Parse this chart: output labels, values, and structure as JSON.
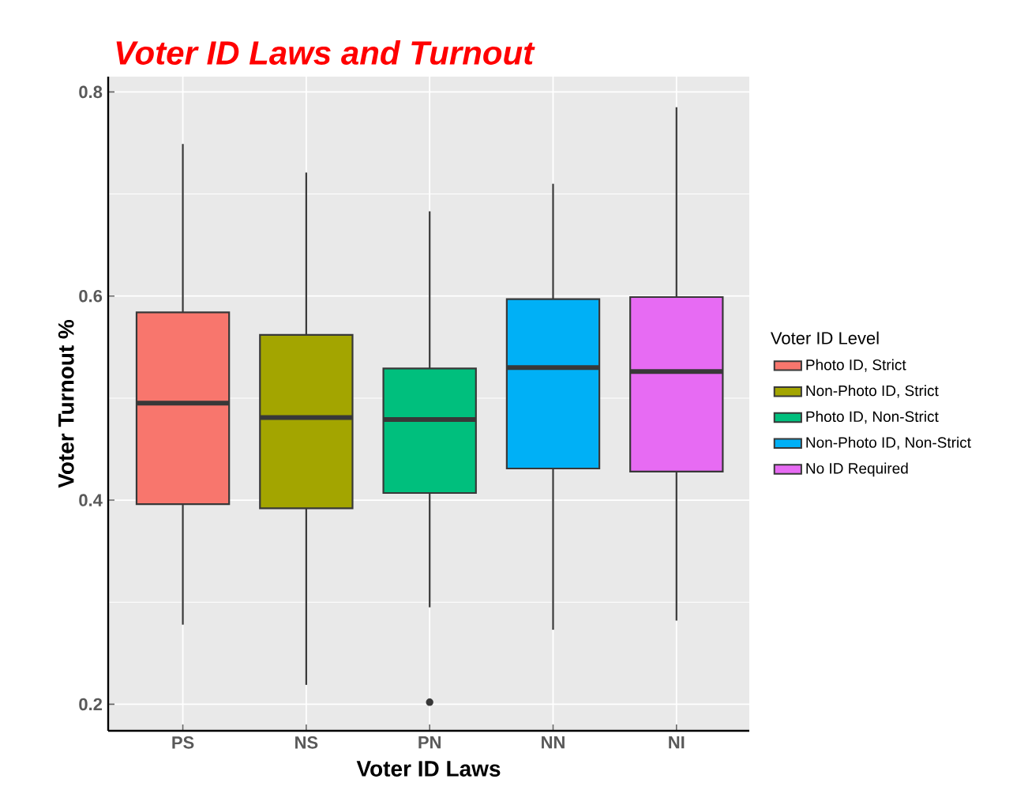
{
  "chart_data": {
    "type": "box",
    "title": "Voter ID Laws and Turnout",
    "xlabel": "Voter ID Laws",
    "ylabel": "Voter Turnout %",
    "legend_title": "Voter ID Level",
    "categories": [
      "PS",
      "NS",
      "PN",
      "NN",
      "NI"
    ],
    "series": [
      {
        "name": "Photo ID, Strict",
        "color": "#f8766d",
        "boxes": [
          {
            "low": 0.278,
            "q1": 0.396,
            "median": 0.495,
            "q3": 0.584,
            "high": 0.749
          },
          null,
          null,
          null,
          null
        ]
      },
      {
        "name": "Non-Photo ID, Strict",
        "color": "#a3a500",
        "boxes": [
          null,
          {
            "low": 0.219,
            "q1": 0.392,
            "median": 0.481,
            "q3": 0.562,
            "high": 0.721
          },
          null,
          null,
          null
        ]
      },
      {
        "name": "Photo ID, Non-Strict",
        "color": "#00bf7d",
        "boxes": [
          null,
          null,
          {
            "low": 0.295,
            "q1": 0.407,
            "median": 0.479,
            "q3": 0.529,
            "high": 0.683,
            "outliers": [
              0.202
            ]
          },
          null,
          null
        ]
      },
      {
        "name": "Non-Photo ID, Non-Strict",
        "color": "#00b0f6",
        "boxes": [
          null,
          null,
          null,
          {
            "low": 0.273,
            "q1": 0.431,
            "median": 0.53,
            "q3": 0.597,
            "high": 0.71
          },
          null
        ]
      },
      {
        "name": "No ID Required",
        "color": "#e76bf3",
        "boxes": [
          null,
          null,
          null,
          null,
          {
            "low": 0.282,
            "q1": 0.428,
            "median": 0.526,
            "q3": 0.599,
            "high": 0.785
          }
        ]
      }
    ],
    "ylim": [
      0.174,
      0.815
    ],
    "yticks": [
      0.2,
      0.4,
      0.6,
      0.8
    ],
    "grid": true,
    "legend": "right"
  }
}
